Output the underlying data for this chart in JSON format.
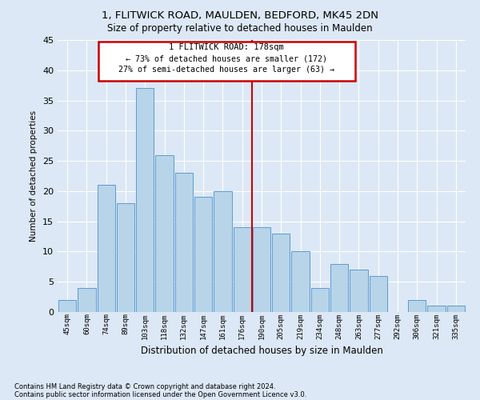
{
  "title": "1, FLITWICK ROAD, MAULDEN, BEDFORD, MK45 2DN",
  "subtitle": "Size of property relative to detached houses in Maulden",
  "xlabel": "Distribution of detached houses by size in Maulden",
  "ylabel": "Number of detached properties",
  "categories": [
    "45sqm",
    "60sqm",
    "74sqm",
    "89sqm",
    "103sqm",
    "118sqm",
    "132sqm",
    "147sqm",
    "161sqm",
    "176sqm",
    "190sqm",
    "205sqm",
    "219sqm",
    "234sqm",
    "248sqm",
    "263sqm",
    "277sqm",
    "292sqm",
    "306sqm",
    "321sqm",
    "335sqm"
  ],
  "values": [
    2,
    4,
    21,
    18,
    37,
    26,
    23,
    19,
    20,
    14,
    14,
    13,
    10,
    4,
    8,
    7,
    6,
    0,
    2,
    1,
    1
  ],
  "bar_color": "#b8d4e8",
  "bar_edge_color": "#5b9bd5",
  "property_line_x": 9.5,
  "annotation_title": "1 FLITWICK ROAD: 178sqm",
  "annotation_line1": "← 73% of detached houses are smaller (172)",
  "annotation_line2": "27% of semi-detached houses are larger (63) →",
  "box_color": "#cc0000",
  "ylim": [
    0,
    45
  ],
  "yticks": [
    0,
    5,
    10,
    15,
    20,
    25,
    30,
    35,
    40,
    45
  ],
  "background_color": "#dce8f5",
  "grid_color": "#ffffff",
  "footnote1": "Contains HM Land Registry data © Crown copyright and database right 2024.",
  "footnote2": "Contains public sector information licensed under the Open Government Licence v3.0."
}
